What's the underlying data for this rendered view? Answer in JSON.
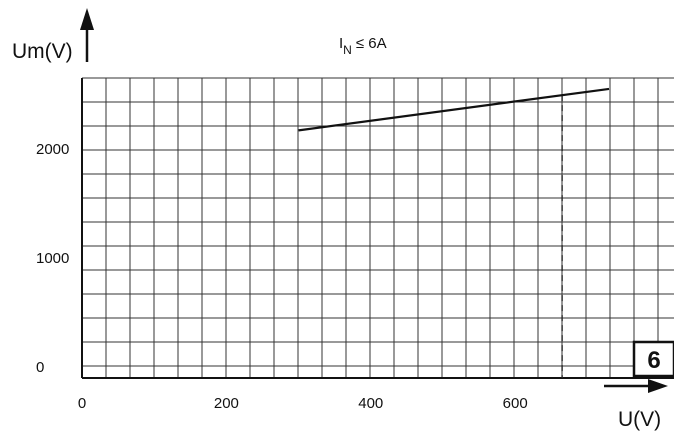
{
  "chart_data": {
    "type": "line",
    "title": "",
    "condition": {
      "symbol": "I",
      "subscript": "N",
      "relation": "≤ 6A"
    },
    "xlabel": "U(V)",
    "ylabel": "Um(V)",
    "xlim": [
      0,
      820
    ],
    "ylim": [
      -100,
      2650
    ],
    "x_ticks": [
      0,
      200,
      400,
      600
    ],
    "y_ticks": [
      0,
      1000,
      2000
    ],
    "grid": true,
    "series": [
      {
        "x": [
          300,
          730
        ],
        "y": [
          2170,
          2550
        ]
      }
    ],
    "reference_lines": [
      {
        "orientation": "vertical",
        "style": "dashed",
        "x": 665
      }
    ],
    "badge": "6"
  }
}
